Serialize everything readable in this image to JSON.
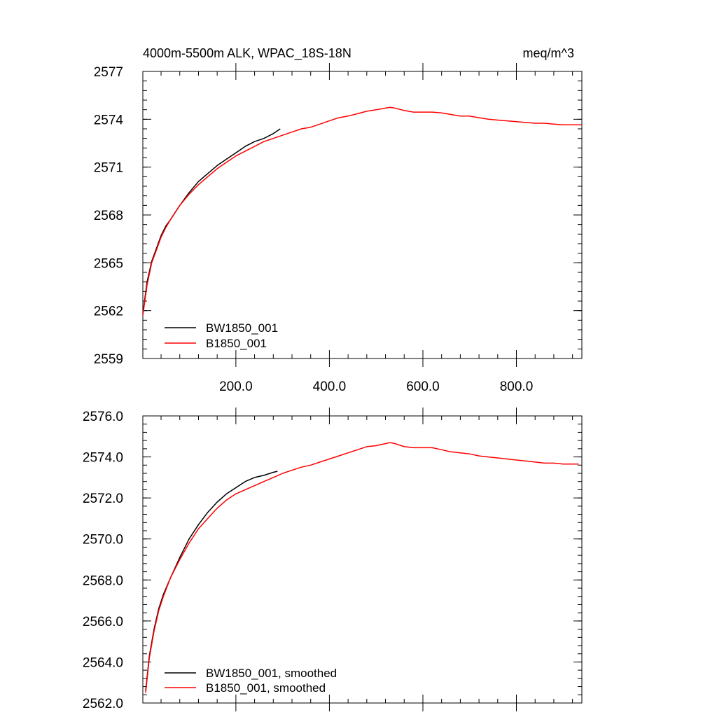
{
  "chart_data": [
    {
      "type": "line",
      "title": "4000m-5500m ALK, WPAC_18S-18N",
      "units": "meq/m^3",
      "xlabel": "",
      "ylabel": "",
      "xlim": [
        1,
        940
      ],
      "ylim": [
        2559,
        2577
      ],
      "x_ticks": [
        200,
        400,
        600,
        800
      ],
      "x_tick_labels": [
        "200.0",
        "400.0",
        "600.0",
        "800.0"
      ],
      "y_ticks": [
        2559,
        2562,
        2565,
        2568,
        2571,
        2574,
        2577
      ],
      "y_tick_labels": [
        "2559",
        "2562",
        "2565",
        "2568",
        "2571",
        "2574",
        "2577"
      ],
      "legend_position": "bottom-left",
      "grid": false,
      "series": [
        {
          "name": "BW1850_001",
          "color": "#000000",
          "x": [
            1,
            10,
            20,
            30,
            40,
            50,
            60,
            80,
            100,
            120,
            140,
            160,
            180,
            200,
            220,
            240,
            260,
            280,
            295
          ],
          "y": [
            2561.8,
            2563.8,
            2565.1,
            2565.9,
            2566.7,
            2567.3,
            2567.7,
            2568.6,
            2569.4,
            2570.1,
            2570.6,
            2571.1,
            2571.5,
            2571.9,
            2572.3,
            2572.6,
            2572.8,
            2573.1,
            2573.4
          ]
        },
        {
          "name": "B1850_001",
          "color": "#ff0000",
          "x": [
            1,
            10,
            20,
            30,
            40,
            50,
            60,
            80,
            100,
            120,
            140,
            160,
            180,
            200,
            220,
            240,
            260,
            280,
            300,
            320,
            340,
            360,
            380,
            400,
            420,
            440,
            460,
            480,
            500,
            520,
            530,
            540,
            560,
            580,
            600,
            620,
            640,
            660,
            680,
            700,
            720,
            740,
            760,
            780,
            800,
            820,
            840,
            860,
            880,
            900,
            920,
            940
          ],
          "y": [
            2561.7,
            2563.6,
            2565.0,
            2565.8,
            2566.6,
            2567.2,
            2567.7,
            2568.6,
            2569.3,
            2569.9,
            2570.4,
            2570.9,
            2571.3,
            2571.7,
            2572.0,
            2572.3,
            2572.6,
            2572.8,
            2573.0,
            2573.2,
            2573.4,
            2573.5,
            2573.7,
            2573.9,
            2574.1,
            2574.2,
            2574.35,
            2574.5,
            2574.6,
            2574.7,
            2574.75,
            2574.7,
            2574.55,
            2574.45,
            2574.45,
            2574.45,
            2574.4,
            2574.3,
            2574.2,
            2574.2,
            2574.1,
            2574.0,
            2573.95,
            2573.9,
            2573.85,
            2573.8,
            2573.75,
            2573.75,
            2573.7,
            2573.65,
            2573.65,
            2573.65
          ]
        }
      ]
    },
    {
      "type": "line",
      "xlabel": "",
      "ylabel": "",
      "xlim": [
        1,
        940
      ],
      "ylim": [
        2562,
        2576
      ],
      "x_ticks": [
        200,
        400,
        600,
        800
      ],
      "x_tick_labels": [],
      "y_ticks": [
        2562,
        2564,
        2566,
        2568,
        2570,
        2572,
        2574,
        2576
      ],
      "y_tick_labels": [
        "2562.0",
        "2564.0",
        "2566.0",
        "2568.0",
        "2570.0",
        "2572.0",
        "2574.0",
        "2576.0"
      ],
      "legend_position": "bottom-left",
      "grid": false,
      "series": [
        {
          "name": "BW1850_001, smoothed",
          "color": "#000000",
          "x": [
            7,
            15,
            25,
            35,
            45,
            60,
            80,
            100,
            120,
            140,
            160,
            180,
            200,
            220,
            240,
            260,
            280,
            289
          ],
          "y": [
            2562.6,
            2564.3,
            2565.6,
            2566.6,
            2567.3,
            2568.1,
            2569.1,
            2570.0,
            2570.7,
            2571.3,
            2571.8,
            2572.2,
            2572.5,
            2572.8,
            2573.0,
            2573.1,
            2573.25,
            2573.3
          ]
        },
        {
          "name": "B1850_001, smoothed",
          "color": "#ff0000",
          "x": [
            7,
            15,
            25,
            35,
            45,
            60,
            80,
            100,
            120,
            140,
            160,
            180,
            200,
            220,
            240,
            260,
            280,
            300,
            320,
            340,
            360,
            380,
            400,
            420,
            440,
            460,
            480,
            500,
            520,
            530,
            540,
            560,
            580,
            600,
            620,
            640,
            660,
            680,
            700,
            720,
            740,
            760,
            780,
            800,
            820,
            840,
            860,
            880,
            900,
            920,
            933
          ],
          "y": [
            2562.5,
            2564.2,
            2565.5,
            2566.5,
            2567.2,
            2568.1,
            2569.0,
            2569.8,
            2570.5,
            2571.0,
            2571.5,
            2571.9,
            2572.2,
            2572.4,
            2572.6,
            2572.8,
            2573.0,
            2573.2,
            2573.35,
            2573.5,
            2573.6,
            2573.75,
            2573.9,
            2574.05,
            2574.2,
            2574.35,
            2574.5,
            2574.55,
            2574.65,
            2574.7,
            2574.65,
            2574.5,
            2574.45,
            2574.45,
            2574.45,
            2574.35,
            2574.25,
            2574.2,
            2574.15,
            2574.05,
            2574.0,
            2573.95,
            2573.9,
            2573.85,
            2573.8,
            2573.75,
            2573.7,
            2573.7,
            2573.65,
            2573.65,
            2573.65
          ]
        }
      ]
    }
  ]
}
